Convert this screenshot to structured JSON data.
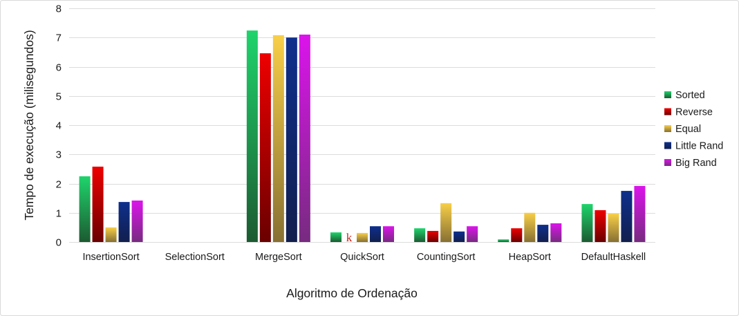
{
  "chart_data": {
    "type": "bar",
    "xlabel": "Algoritmo de Ordenação",
    "ylabel": "Tempo de execução (milisegundos)",
    "ylim": [
      0,
      8
    ],
    "yticks": [
      0,
      1,
      2,
      3,
      4,
      5,
      6,
      7,
      8
    ],
    "grid": true,
    "legend": "right",
    "categories": [
      "InsertionSort",
      "SelectionSort",
      "MergeSort",
      "QuickSort",
      "CountingSort",
      "HeapSort",
      "DefaultHaskell"
    ],
    "series": [
      {
        "name": "Sorted",
        "color": "#1fd46c",
        "color_dark": "#1c5a31",
        "values": [
          2.25,
          null,
          7.24,
          0.33,
          0.47,
          0.09,
          1.3
        ]
      },
      {
        "name": "Reverse",
        "color": "#ee0000",
        "color_dark": "#6a0000",
        "values": [
          2.58,
          null,
          6.46,
          0.0,
          0.38,
          0.47,
          1.09
        ]
      },
      {
        "name": "Equal",
        "color": "#f8cf48",
        "color_dark": "#877033",
        "values": [
          0.5,
          null,
          7.08,
          0.31,
          1.33,
          1.0,
          0.97
        ]
      },
      {
        "name": "Little Rand",
        "color": "#0e2f8c",
        "color_dark": "#121f4e",
        "values": [
          1.37,
          null,
          7.0,
          0.54,
          0.36,
          0.59,
          1.75
        ]
      },
      {
        "name": "Big Rand",
        "color": "#db14eb",
        "color_dark": "#772b80",
        "values": [
          1.42,
          null,
          7.1,
          0.54,
          0.54,
          0.64,
          1.92
        ]
      }
    ],
    "annotations": [
      {
        "text": "k",
        "category": "QuickSort",
        "series": "Reverse",
        "color": "#c0281e"
      }
    ]
  }
}
